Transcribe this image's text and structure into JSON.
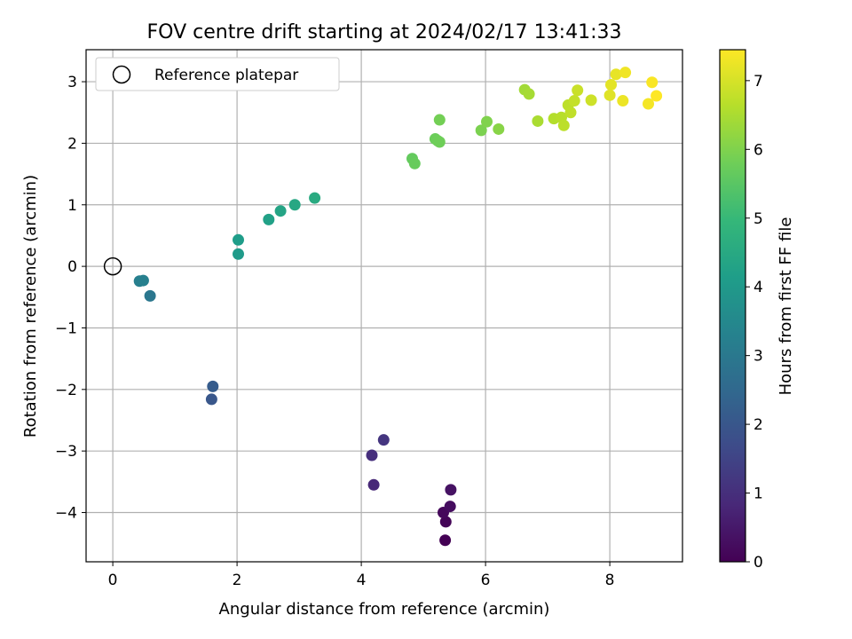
{
  "chart_data": {
    "type": "scatter",
    "title": "FOV centre drift starting at 2024/02/17 13:41:33",
    "xlabel": "Angular distance from reference (arcmin)",
    "ylabel": "Rotation from reference (arcmin)",
    "xlim": [
      -0.43,
      9.17
    ],
    "ylim": [
      -4.8,
      3.52
    ],
    "xticks": [
      0,
      2,
      4,
      6,
      8
    ],
    "yticks": [
      -4,
      -3,
      -2,
      -1,
      0,
      1,
      2,
      3
    ],
    "grid": true,
    "legend": {
      "position": "top-left",
      "entries": [
        "Reference platepar"
      ]
    },
    "reference_point": {
      "x": 0,
      "y": 0
    },
    "colorbar": {
      "label": "Hours from first FF file",
      "min": 0,
      "max": 7.45,
      "ticks": [
        0,
        1,
        2,
        3,
        4,
        5,
        6,
        7
      ],
      "colormap": "viridis"
    },
    "points": [
      {
        "x": 5.35,
        "y": -4.45,
        "t": 0.0
      },
      {
        "x": 5.36,
        "y": -4.15,
        "t": 0.08
      },
      {
        "x": 5.32,
        "y": -4.0,
        "t": 0.15
      },
      {
        "x": 5.43,
        "y": -3.9,
        "t": 0.25
      },
      {
        "x": 5.44,
        "y": -3.63,
        "t": 0.35
      },
      {
        "x": 4.2,
        "y": -3.55,
        "t": 0.85
      },
      {
        "x": 4.17,
        "y": -3.07,
        "t": 1.0
      },
      {
        "x": 4.36,
        "y": -2.82,
        "t": 1.15
      },
      {
        "x": 1.59,
        "y": -2.16,
        "t": 2.0
      },
      {
        "x": 1.61,
        "y": -1.95,
        "t": 2.15
      },
      {
        "x": 0.6,
        "y": -0.48,
        "t": 2.95
      },
      {
        "x": 0.43,
        "y": -0.24,
        "t": 3.2
      },
      {
        "x": 0.49,
        "y": -0.23,
        "t": 3.25
      },
      {
        "x": 2.02,
        "y": 0.2,
        "t": 4.05
      },
      {
        "x": 2.02,
        "y": 0.43,
        "t": 4.1
      },
      {
        "x": 2.51,
        "y": 0.76,
        "t": 4.25
      },
      {
        "x": 2.7,
        "y": 0.9,
        "t": 4.35
      },
      {
        "x": 2.93,
        "y": 1.0,
        "t": 4.45
      },
      {
        "x": 3.25,
        "y": 1.11,
        "t": 4.55
      },
      {
        "x": 4.82,
        "y": 1.75,
        "t": 5.65
      },
      {
        "x": 4.86,
        "y": 1.67,
        "t": 5.7
      },
      {
        "x": 5.19,
        "y": 2.07,
        "t": 5.75
      },
      {
        "x": 5.23,
        "y": 2.04,
        "t": 5.78
      },
      {
        "x": 5.26,
        "y": 2.02,
        "t": 5.8
      },
      {
        "x": 5.26,
        "y": 2.38,
        "t": 5.85
      },
      {
        "x": 5.93,
        "y": 2.21,
        "t": 5.95
      },
      {
        "x": 6.02,
        "y": 2.35,
        "t": 6.0
      },
      {
        "x": 6.21,
        "y": 2.23,
        "t": 6.1
      },
      {
        "x": 6.63,
        "y": 2.87,
        "t": 6.4
      },
      {
        "x": 6.7,
        "y": 2.8,
        "t": 6.45
      },
      {
        "x": 6.84,
        "y": 2.36,
        "t": 6.5
      },
      {
        "x": 7.1,
        "y": 2.4,
        "t": 6.6
      },
      {
        "x": 7.22,
        "y": 2.42,
        "t": 6.65
      },
      {
        "x": 7.26,
        "y": 2.29,
        "t": 6.7
      },
      {
        "x": 7.33,
        "y": 2.62,
        "t": 6.72
      },
      {
        "x": 7.37,
        "y": 2.5,
        "t": 6.75
      },
      {
        "x": 7.43,
        "y": 2.69,
        "t": 6.8
      },
      {
        "x": 7.48,
        "y": 2.86,
        "t": 6.85
      },
      {
        "x": 7.7,
        "y": 2.7,
        "t": 6.9
      },
      {
        "x": 8.0,
        "y": 2.78,
        "t": 7.1
      },
      {
        "x": 8.02,
        "y": 2.95,
        "t": 7.15
      },
      {
        "x": 8.1,
        "y": 3.12,
        "t": 7.2
      },
      {
        "x": 8.21,
        "y": 2.69,
        "t": 7.25
      },
      {
        "x": 8.25,
        "y": 3.15,
        "t": 7.3
      },
      {
        "x": 8.62,
        "y": 2.64,
        "t": 7.35
      },
      {
        "x": 8.68,
        "y": 2.99,
        "t": 7.4
      },
      {
        "x": 8.75,
        "y": 2.77,
        "t": 7.45
      }
    ]
  }
}
